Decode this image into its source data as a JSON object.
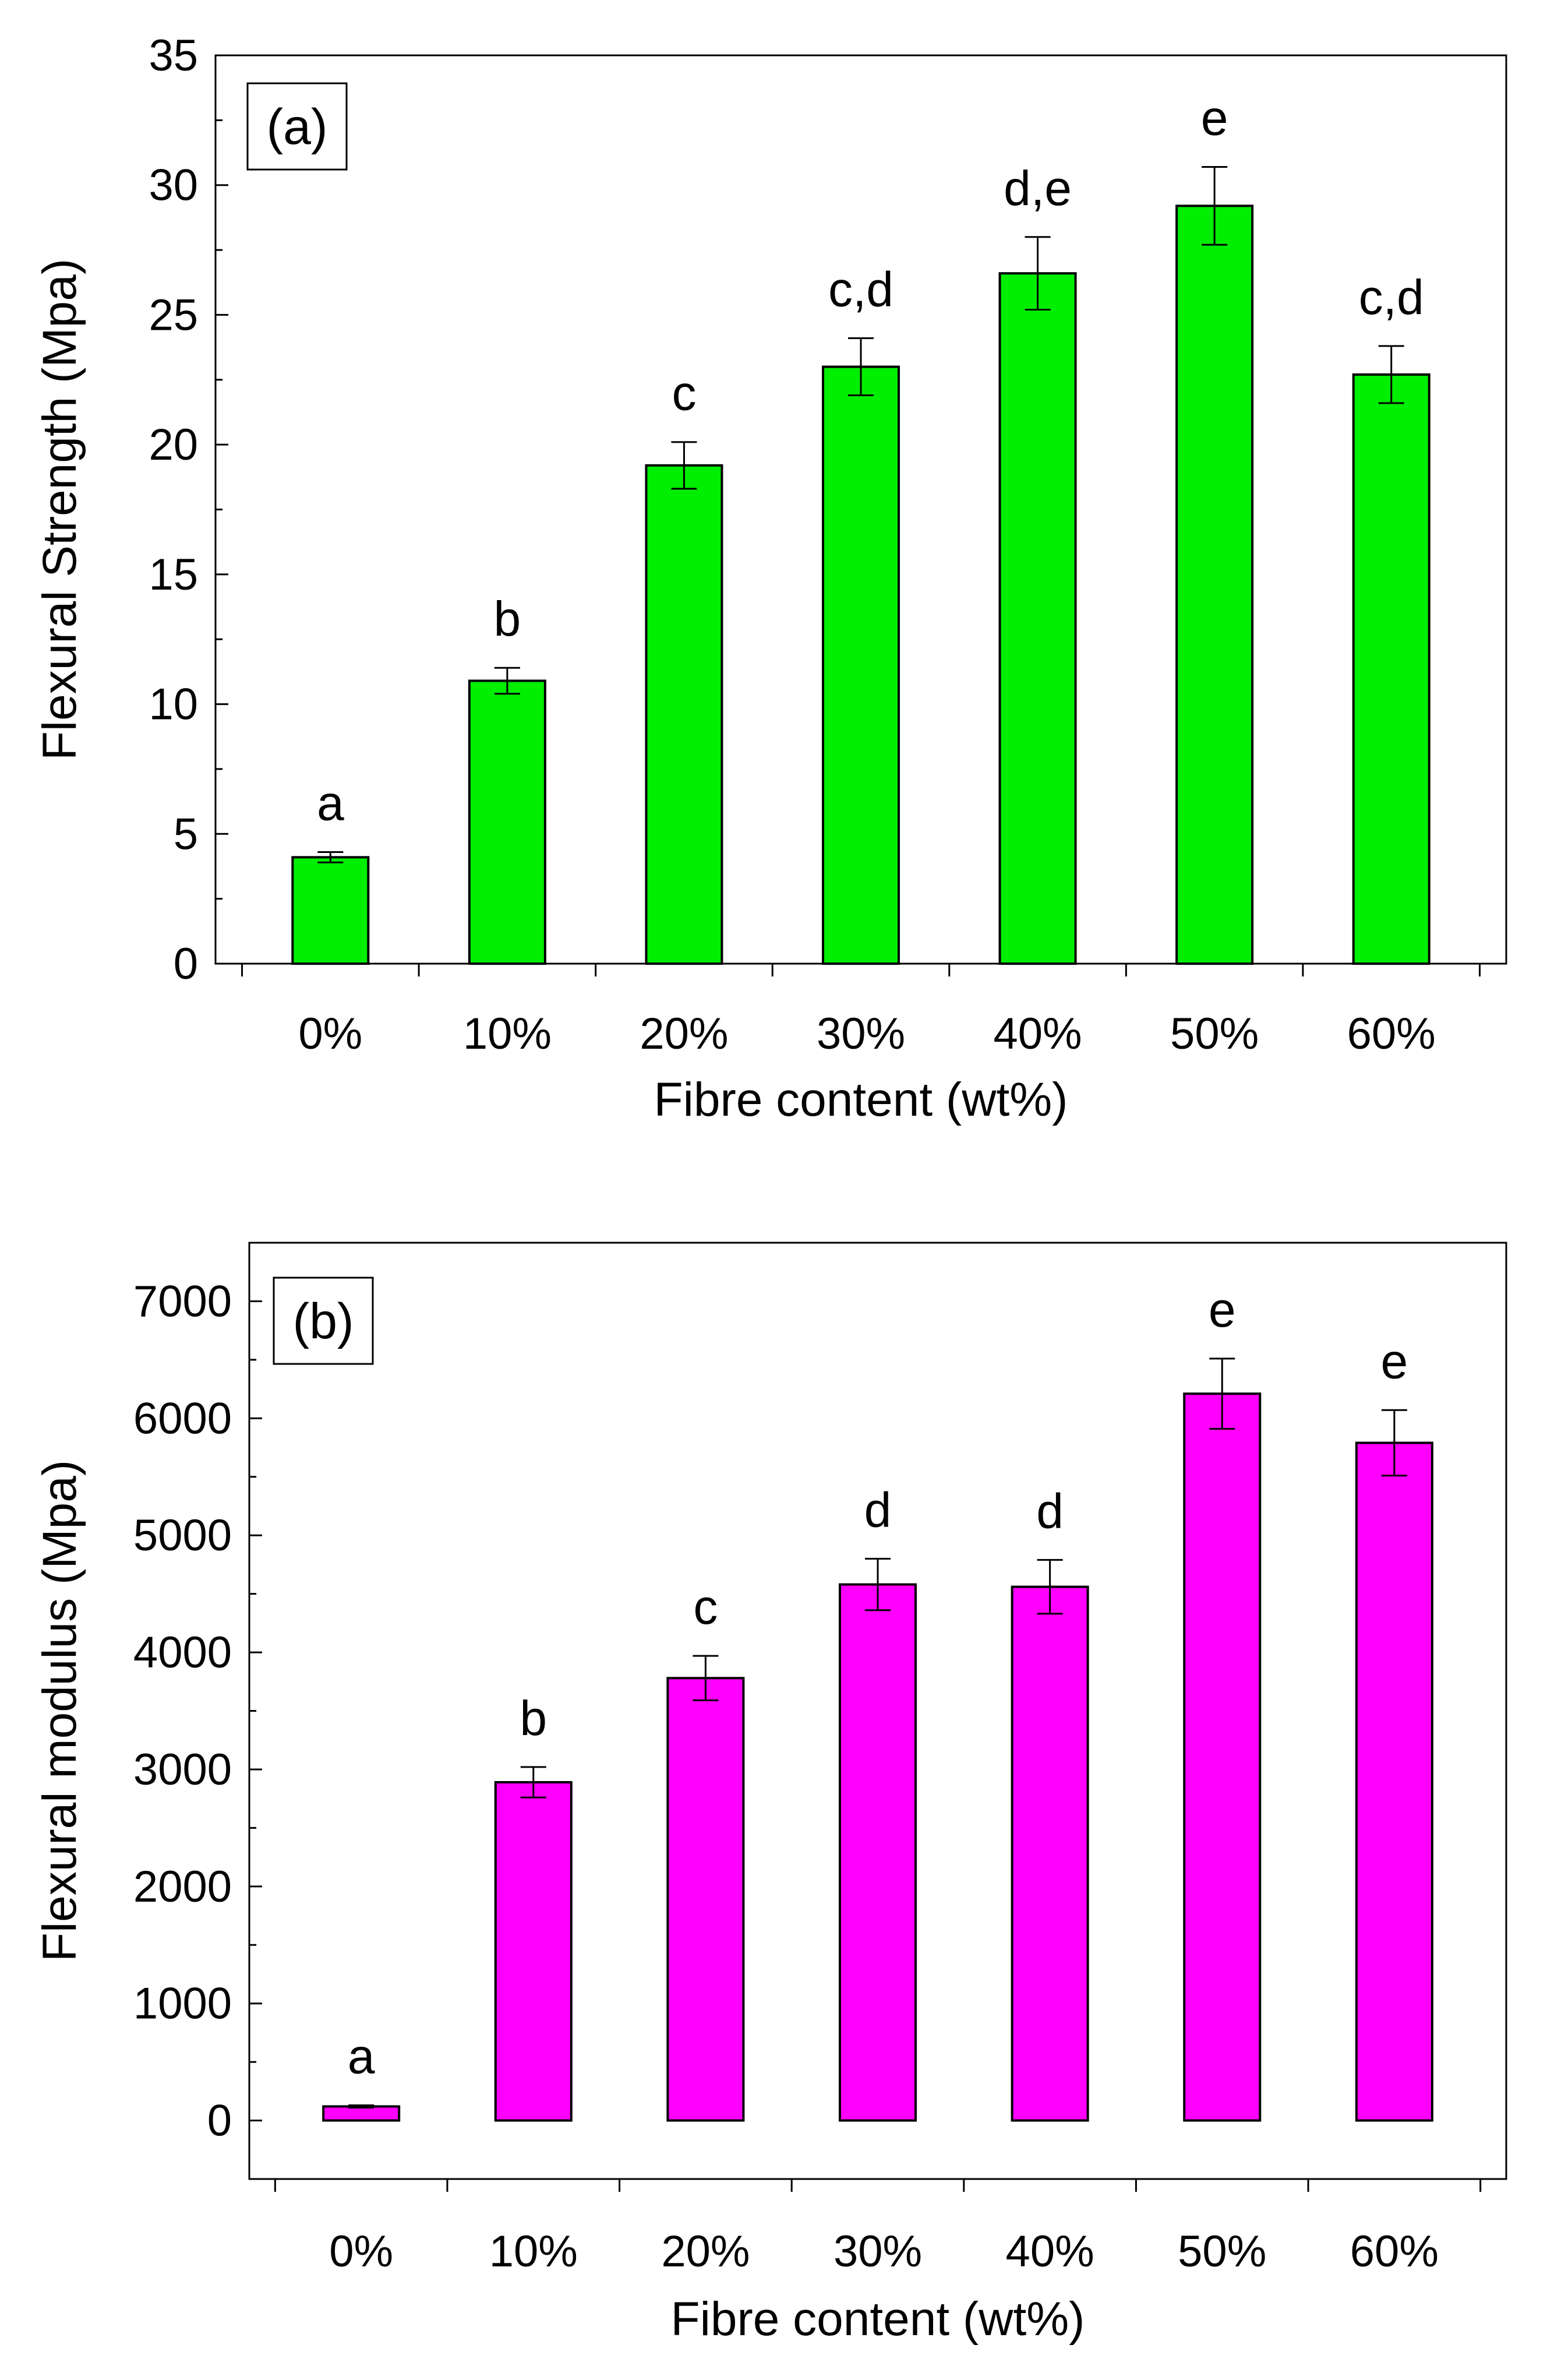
{
  "chart_data": [
    {
      "type": "bar",
      "panel_label": "(a)",
      "xlabel": "Fibre content (wt%)",
      "ylabel": "Flexural Strength (Mpa)",
      "categories": [
        "0%",
        "10%",
        "20%",
        "30%",
        "40%",
        "50%",
        "60%"
      ],
      "values": [
        4.1,
        10.9,
        19.2,
        23.0,
        26.6,
        29.2,
        22.7
      ],
      "errors": [
        0.2,
        0.5,
        0.9,
        1.1,
        1.4,
        1.5,
        1.1
      ],
      "group_labels": [
        "a",
        "b",
        "c",
        "c,d",
        "d,e",
        "e",
        "c,d"
      ],
      "ylim": [
        0,
        35
      ],
      "yticks": [
        "0",
        "5",
        "10",
        "15",
        "20",
        "25",
        "30",
        "35"
      ],
      "bar_color": "#00ee00",
      "grid": false
    },
    {
      "type": "bar",
      "panel_label": "(b)",
      "xlabel": "Fibre content (wt%)",
      "ylabel": "Flexural modulus (Mpa)",
      "categories": [
        "0%",
        "10%",
        "20%",
        "30%",
        "40%",
        "50%",
        "60%"
      ],
      "values": [
        120,
        2890,
        3780,
        4580,
        4560,
        6210,
        5790
      ],
      "errors": [
        10,
        130,
        190,
        220,
        230,
        300,
        280
      ],
      "group_labels": [
        "a",
        "b",
        "c",
        "d",
        "d",
        "e",
        "e"
      ],
      "ylim": [
        -500,
        7500
      ],
      "yticks": [
        "0",
        "1000",
        "2000",
        "3000",
        "4000",
        "5000",
        "6000",
        "7000"
      ],
      "bar_color": "#ff00ff",
      "grid": false
    }
  ]
}
